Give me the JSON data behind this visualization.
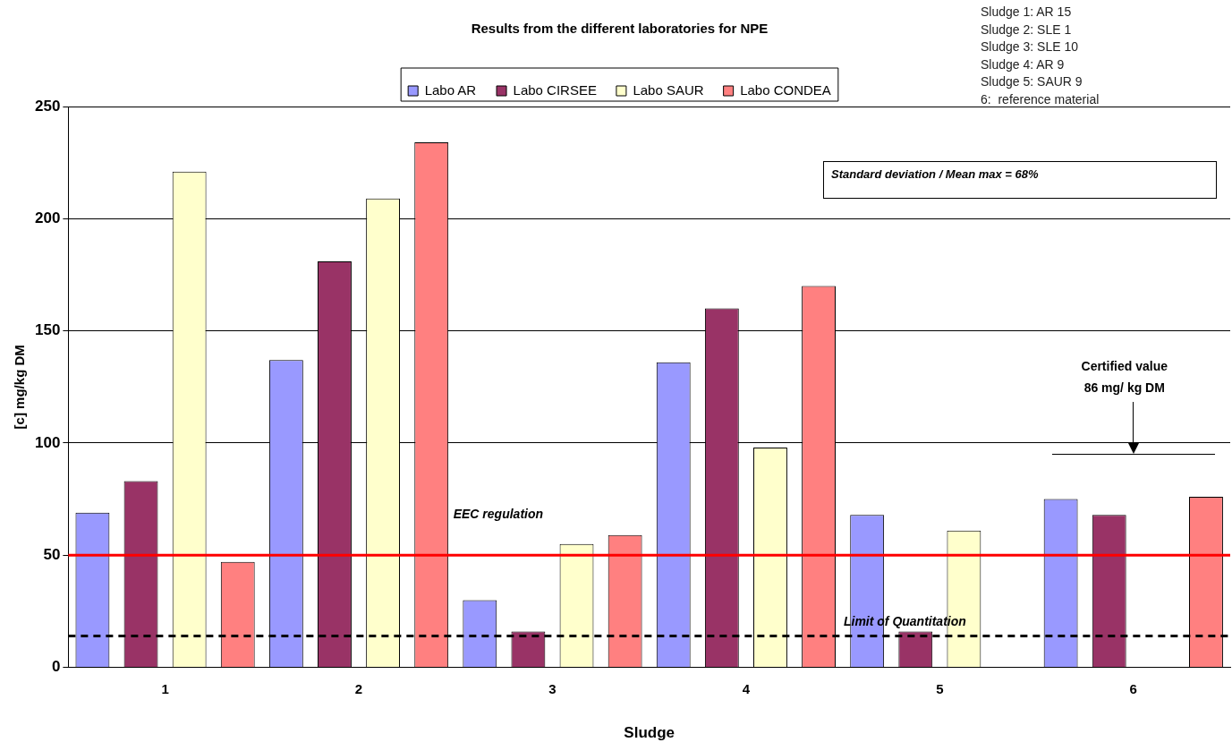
{
  "chart_data": {
    "type": "bar",
    "title": "Results from the different laboratories for NPE",
    "xlabel": "Sludge",
    "ylabel": "[c] mg/kg DM",
    "categories": [
      "1",
      "2",
      "3",
      "4",
      "5",
      "6"
    ],
    "series": [
      {
        "name": "Labo AR",
        "color": "#9999ff",
        "values": [
          69,
          137,
          30,
          136,
          68,
          75
        ]
      },
      {
        "name": "Labo CIRSEE",
        "color": "#993366",
        "values": [
          83,
          181,
          16,
          160,
          16,
          68
        ]
      },
      {
        "name": "Labo SAUR",
        "color": "#ffffcc",
        "values": [
          221,
          209,
          55,
          98,
          61,
          null
        ]
      },
      {
        "name": "Labo CONDEA",
        "color": "#ff8080",
        "values": [
          47,
          234,
          59,
          170,
          null,
          76
        ]
      }
    ],
    "ylim": [
      0,
      250
    ],
    "yticks": [
      0,
      50,
      100,
      150,
      200,
      250
    ],
    "grid": "y",
    "legend": "top",
    "ref_lines": [
      {
        "axis": "y",
        "value": 50,
        "label": "EEC regulation",
        "color": "#ff0000",
        "line_style": "solid"
      },
      {
        "axis": "y",
        "value": 14,
        "label": "Limit of Quantitation",
        "color": "#000000",
        "line_style": "dashed"
      }
    ],
    "annotations": [
      "Sludge 1: AR 15",
      "Sludge 2: SLE 1",
      "Sludge 3: SLE 10",
      "Sludge 4: AR 9",
      "Sludge 5: SAUR 9",
      "6:  reference material",
      "Standard deviation / Mean  max = 68%",
      "Certified value\n86 mg/ kg DM"
    ]
  }
}
